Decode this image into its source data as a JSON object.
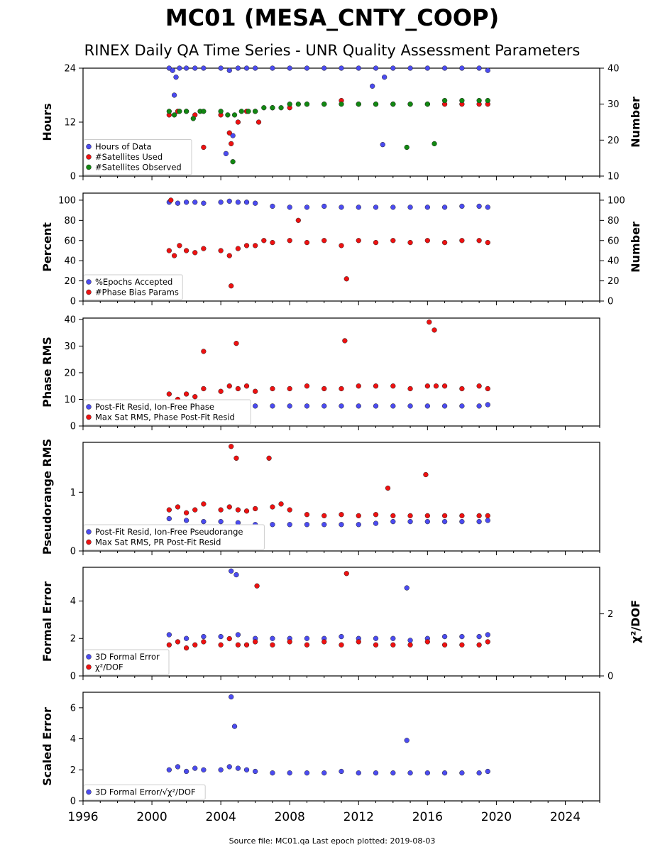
{
  "title": "MC01 (MESA_CNTY_COOP)",
  "subtitle": "RINEX Daily QA Time Series - UNR Quality Assessment Parameters",
  "source_note": "Source file: MC01.qa Last epoch plotted: 2019-08-03",
  "colors": {
    "blue": "#4b4bf0",
    "red": "#ee1111",
    "green": "#118811"
  },
  "chart_data": [
    {
      "type": "scatter",
      "ylabel": "Hours",
      "y2label": "Number",
      "xlim": [
        1996,
        2026
      ],
      "ylim": [
        0,
        24
      ],
      "y2lim": [
        10,
        40
      ],
      "yticks": [
        "0",
        "12",
        "24"
      ],
      "y2ticks": [
        "10",
        "20",
        "30",
        "40"
      ],
      "legend_position": "lower-left",
      "series": [
        {
          "name": "Hours of Data",
          "color": "blue",
          "axis": "left",
          "x": [
            2001.0,
            2001.2,
            2001.4,
            2001.6,
            2002.0,
            2002.5,
            2003.0,
            2004.0,
            2004.5,
            2005.0,
            2005.5,
            2006.0,
            2007.0,
            2008.0,
            2009.0,
            2010.0,
            2011.0,
            2012.0,
            2013.0,
            2013.5,
            2014.0,
            2015.0,
            2016.0,
            2017.0,
            2018.0,
            2019.0,
            2019.5,
            2001.3,
            2004.3,
            2004.7,
            2012.8,
            2013.4
          ],
          "y": [
            24,
            23.5,
            22,
            24,
            24,
            24,
            24,
            24,
            23.5,
            24,
            24,
            24,
            24,
            24,
            24,
            24,
            24,
            24,
            24,
            22,
            24,
            24,
            24,
            24,
            24,
            24,
            23.5,
            18,
            5,
            9,
            20,
            7
          ]
        },
        {
          "name": "#Satellites Used",
          "color": "red",
          "axis": "right",
          "x": [
            2001.0,
            2001.5,
            2002.0,
            2002.5,
            2003.0,
            2004.0,
            2004.5,
            2005.0,
            2005.5,
            2006.0,
            2007.0,
            2008.0,
            2009.0,
            2010.0,
            2011.0,
            2012.0,
            2013.0,
            2014.0,
            2015.0,
            2016.0,
            2017.0,
            2018.0,
            2019.0,
            2019.5,
            2004.6,
            2006.2
          ],
          "y": [
            27,
            28,
            28,
            27,
            18,
            27,
            22,
            25,
            28,
            28,
            29,
            29,
            30,
            30,
            31,
            30,
            30,
            30,
            30,
            30,
            30,
            30,
            30,
            30,
            19,
            25
          ]
        },
        {
          "name": "#Satellites Observed",
          "color": "green",
          "axis": "right",
          "x": [
            2001.0,
            2001.3,
            2001.6,
            2002.0,
            2002.4,
            2002.8,
            2003.0,
            2004.0,
            2004.4,
            2004.8,
            2005.2,
            2005.6,
            2006.0,
            2006.5,
            2007.0,
            2007.5,
            2008.0,
            2008.5,
            2009.0,
            2010.0,
            2011.0,
            2012.0,
            2013.0,
            2014.0,
            2015.0,
            2016.0,
            2017.0,
            2018.0,
            2019.0,
            2019.5,
            2004.7,
            2014.8,
            2016.4
          ],
          "y": [
            28,
            27,
            28,
            28,
            26,
            28,
            28,
            28,
            27,
            27,
            28,
            28,
            28,
            29,
            29,
            29,
            30,
            30,
            30,
            30,
            30,
            30,
            30,
            30,
            30,
            30,
            31,
            31,
            31,
            31,
            14,
            18,
            19
          ]
        }
      ]
    },
    {
      "type": "scatter",
      "ylabel": "Percent",
      "y2label": "Number",
      "xlim": [
        1996,
        2026
      ],
      "ylim": [
        0,
        107
      ],
      "yticks": [
        "0",
        "20",
        "40",
        "60",
        "80",
        "100"
      ],
      "y2ticks": [
        "0",
        "20",
        "40",
        "60",
        "80",
        "100"
      ],
      "legend_position": "lower-left",
      "series": [
        {
          "name": "%Epochs Accepted",
          "color": "blue",
          "axis": "left",
          "x": [
            2001.0,
            2001.5,
            2002.0,
            2002.5,
            2003.0,
            2004.0,
            2004.5,
            2005.0,
            2005.5,
            2006.0,
            2007.0,
            2008.0,
            2009.0,
            2010.0,
            2011.0,
            2012.0,
            2013.0,
            2014.0,
            2015.0,
            2016.0,
            2017.0,
            2018.0,
            2019.0,
            2019.5
          ],
          "y": [
            98,
            97,
            98,
            98,
            97,
            98,
            99,
            98,
            98,
            97,
            94,
            93,
            93,
            94,
            93,
            93,
            93,
            93,
            93,
            93,
            93,
            94,
            94,
            93
          ]
        },
        {
          "name": "#Phase Bias Params",
          "color": "red",
          "axis": "right",
          "x": [
            2001.0,
            2001.3,
            2001.6,
            2002.0,
            2002.5,
            2003.0,
            2004.0,
            2004.5,
            2005.0,
            2005.5,
            2006.0,
            2006.5,
            2007.0,
            2008.0,
            2009.0,
            2010.0,
            2011.0,
            2012.0,
            2013.0,
            2014.0,
            2015.0,
            2016.0,
            2017.0,
            2018.0,
            2019.0,
            2019.5,
            2001.1,
            2004.6,
            2008.5,
            2011.3
          ],
          "y": [
            50,
            45,
            55,
            50,
            48,
            52,
            50,
            45,
            52,
            55,
            55,
            60,
            58,
            60,
            58,
            60,
            55,
            60,
            58,
            60,
            58,
            60,
            58,
            60,
            60,
            58,
            100,
            15,
            80,
            22
          ]
        }
      ]
    },
    {
      "type": "scatter",
      "ylabel": "Phase RMS",
      "xlim": [
        1996,
        2026
      ],
      "ylim": [
        0,
        40.5
      ],
      "yticks": [
        "0",
        "10",
        "20",
        "30",
        "40"
      ],
      "legend_position": "lower-left",
      "series": [
        {
          "name": "Post-Fit Resid, Ion-Free Phase",
          "color": "blue",
          "axis": "left",
          "x": [
            2001.0,
            2002.0,
            2003.0,
            2004.0,
            2005.0,
            2006.0,
            2007.0,
            2008.0,
            2009.0,
            2010.0,
            2011.0,
            2012.0,
            2013.0,
            2014.0,
            2015.0,
            2016.0,
            2017.0,
            2018.0,
            2019.0,
            2019.5
          ],
          "y": [
            8,
            8,
            8,
            8,
            8,
            7.5,
            7.5,
            7.5,
            7.5,
            7.5,
            7.5,
            7.5,
            7.5,
            7.5,
            7.5,
            7.5,
            7.5,
            7.5,
            7.5,
            8
          ]
        },
        {
          "name": "Max Sat RMS, Phase Post-Fit Resid",
          "color": "red",
          "axis": "left",
          "x": [
            2001.0,
            2001.5,
            2002.0,
            2002.5,
            2003.0,
            2004.0,
            2004.5,
            2005.0,
            2005.5,
            2006.0,
            2007.0,
            2008.0,
            2009.0,
            2010.0,
            2011.0,
            2012.0,
            2013.0,
            2014.0,
            2015.0,
            2016.0,
            2016.5,
            2017.0,
            2018.0,
            2019.0,
            2019.5,
            2003.0,
            2004.9,
            2011.2,
            2016.1,
            2016.4
          ],
          "y": [
            12,
            10,
            12,
            11,
            14,
            13,
            15,
            14,
            15,
            13,
            14,
            14,
            15,
            14,
            14,
            15,
            15,
            15,
            14,
            15,
            15,
            15,
            14,
            15,
            14,
            28,
            31,
            32,
            39,
            36
          ]
        }
      ]
    },
    {
      "type": "scatter",
      "ylabel": "Pseudorange RMS",
      "xlim": [
        1996,
        2026
      ],
      "ylim": [
        0,
        1.85
      ],
      "yticks": [
        "0",
        "1"
      ],
      "legend_position": "lower-left",
      "series": [
        {
          "name": "Post-Fit Resid, Ion-Free Pseudorange",
          "color": "blue",
          "axis": "left",
          "x": [
            2001.0,
            2002.0,
            2003.0,
            2004.0,
            2005.0,
            2006.0,
            2007.0,
            2008.0,
            2009.0,
            2010.0,
            2011.0,
            2012.0,
            2013.0,
            2014.0,
            2015.0,
            2016.0,
            2017.0,
            2018.0,
            2019.0,
            2019.5
          ],
          "y": [
            0.55,
            0.52,
            0.5,
            0.5,
            0.48,
            0.45,
            0.45,
            0.45,
            0.45,
            0.45,
            0.45,
            0.45,
            0.47,
            0.5,
            0.5,
            0.5,
            0.5,
            0.5,
            0.5,
            0.52
          ]
        },
        {
          "name": "Max Sat RMS, PR Post-Fit Resid",
          "color": "red",
          "axis": "left",
          "x": [
            2001.0,
            2001.5,
            2002.0,
            2002.5,
            2003.0,
            2004.0,
            2004.5,
            2005.0,
            2005.5,
            2006.0,
            2007.0,
            2007.5,
            2008.0,
            2009.0,
            2010.0,
            2011.0,
            2012.0,
            2013.0,
            2014.0,
            2015.0,
            2016.0,
            2017.0,
            2018.0,
            2019.0,
            2019.5,
            2004.6,
            2004.9,
            2006.8,
            2013.7,
            2015.9
          ],
          "y": [
            0.7,
            0.75,
            0.65,
            0.7,
            0.8,
            0.7,
            0.75,
            0.7,
            0.68,
            0.72,
            0.75,
            0.8,
            0.7,
            0.62,
            0.6,
            0.62,
            0.6,
            0.62,
            0.6,
            0.6,
            0.6,
            0.6,
            0.6,
            0.6,
            0.6,
            1.78,
            1.58,
            1.58,
            1.07,
            1.3
          ]
        }
      ]
    },
    {
      "type": "scatter",
      "ylabel": "Formal Error",
      "y2label": "χ²/DOF",
      "xlim": [
        1996,
        2026
      ],
      "ylim": [
        0,
        5.8
      ],
      "y2lim": [
        0,
        3.5
      ],
      "yticks": [
        "0",
        "2",
        "4"
      ],
      "y2ticks": [
        "0",
        "2"
      ],
      "legend_position": "lower-left",
      "series": [
        {
          "name": "3D Formal Error",
          "color": "blue",
          "axis": "left",
          "x": [
            2001.0,
            2002.0,
            2003.0,
            2004.0,
            2005.0,
            2006.0,
            2007.0,
            2008.0,
            2009.0,
            2010.0,
            2011.0,
            2012.0,
            2013.0,
            2014.0,
            2015.0,
            2016.0,
            2017.0,
            2018.0,
            2019.0,
            2019.5,
            2004.6,
            2004.9,
            2014.8
          ],
          "y": [
            2.2,
            2.0,
            2.1,
            2.1,
            2.2,
            2.0,
            2.0,
            2.0,
            2.0,
            2.0,
            2.1,
            2.0,
            2.0,
            2.0,
            1.9,
            2.0,
            2.1,
            2.1,
            2.1,
            2.2,
            5.6,
            5.4,
            4.7
          ]
        },
        {
          "name": "χ²/DOF",
          "color": "red",
          "axis": "right",
          "x": [
            2001.0,
            2001.5,
            2002.0,
            2002.5,
            2003.0,
            2004.0,
            2004.5,
            2005.0,
            2005.5,
            2006.0,
            2007.0,
            2008.0,
            2009.0,
            2010.0,
            2011.0,
            2012.0,
            2013.0,
            2014.0,
            2015.0,
            2016.0,
            2017.0,
            2018.0,
            2019.0,
            2019.5,
            2006.1,
            2011.3
          ],
          "y": [
            1.0,
            1.1,
            0.9,
            1.0,
            1.1,
            1.0,
            1.2,
            1.0,
            1.0,
            1.1,
            1.0,
            1.1,
            1.0,
            1.1,
            1.0,
            1.1,
            1.0,
            1.0,
            1.0,
            1.1,
            1.0,
            1.0,
            1.0,
            1.1,
            2.9,
            3.3
          ]
        }
      ]
    },
    {
      "type": "scatter",
      "ylabel": "Scaled Error",
      "xlim": [
        1996,
        2026
      ],
      "ylim": [
        0,
        7
      ],
      "yticks": [
        "0",
        "2",
        "4",
        "6"
      ],
      "xticks": [
        "1996",
        "2000",
        "2004",
        "2008",
        "2012",
        "2016",
        "2020",
        "2024"
      ],
      "legend_position": "lower-left",
      "series": [
        {
          "name": "3D Formal Error/√χ²/DOF",
          "color": "blue",
          "axis": "left",
          "x": [
            2001.0,
            2001.5,
            2002.0,
            2002.5,
            2003.0,
            2004.0,
            2004.5,
            2005.0,
            2005.5,
            2006.0,
            2007.0,
            2008.0,
            2009.0,
            2010.0,
            2011.0,
            2012.0,
            2013.0,
            2014.0,
            2015.0,
            2016.0,
            2017.0,
            2018.0,
            2019.0,
            2019.5,
            2004.6,
            2004.8,
            2014.8
          ],
          "y": [
            2.0,
            2.2,
            1.9,
            2.1,
            2.0,
            2.0,
            2.2,
            2.1,
            2.0,
            1.9,
            1.8,
            1.8,
            1.8,
            1.8,
            1.9,
            1.8,
            1.8,
            1.8,
            1.8,
            1.8,
            1.8,
            1.8,
            1.8,
            1.9,
            6.7,
            4.8,
            3.9
          ]
        }
      ]
    }
  ]
}
